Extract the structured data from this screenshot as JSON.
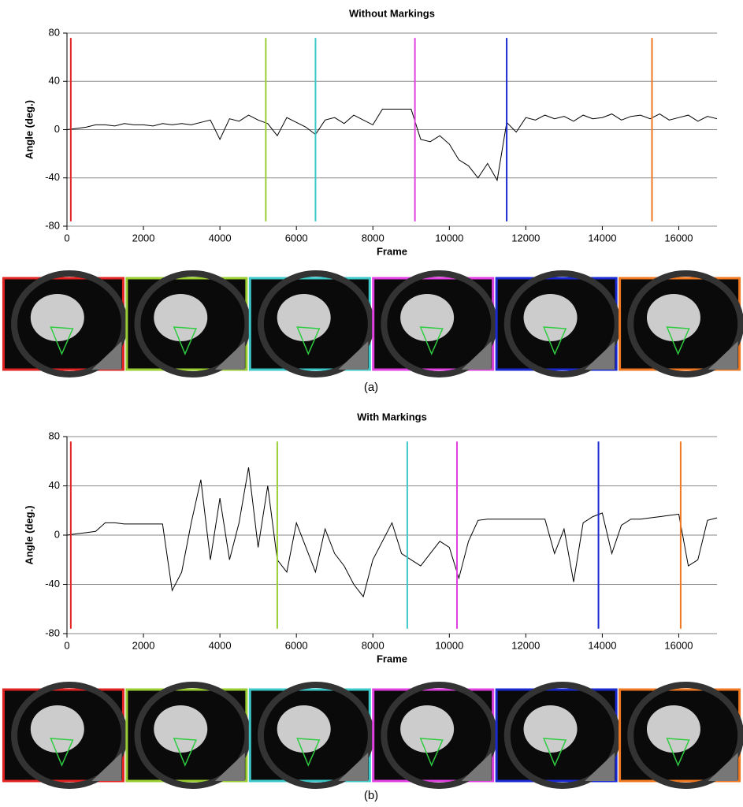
{
  "chart_data": [
    {
      "type": "line",
      "title": "Without Markings",
      "xlabel": "Frame",
      "ylabel": "Angle (deg.)",
      "caption": "(a)",
      "xlim": [
        0,
        17000
      ],
      "ylim": [
        -80,
        80
      ],
      "xticks": [
        0,
        2000,
        4000,
        6000,
        8000,
        10000,
        12000,
        14000,
        16000
      ],
      "yticks": [
        -80,
        -40,
        0,
        40,
        80
      ],
      "grid": true,
      "line_color": "#000000",
      "x": [
        0,
        250,
        500,
        750,
        1000,
        1250,
        1500,
        1750,
        2000,
        2250,
        2500,
        2750,
        3000,
        3250,
        3500,
        3750,
        4000,
        4250,
        4500,
        4750,
        5000,
        5250,
        5500,
        5750,
        6000,
        6250,
        6500,
        6750,
        7000,
        7250,
        7500,
        7750,
        8000,
        8250,
        8500,
        8750,
        9000,
        9250,
        9500,
        9750,
        10000,
        10250,
        10500,
        10750,
        11000,
        11250,
        11500,
        11750,
        12000,
        12250,
        12500,
        12750,
        13000,
        13250,
        13500,
        13750,
        14000,
        14250,
        14500,
        14750,
        15000,
        15250,
        15500,
        15750,
        16000,
        16250,
        16500,
        16750,
        17000
      ],
      "values": [
        0,
        1,
        2,
        4,
        4,
        3,
        5,
        4,
        4,
        3,
        5,
        4,
        5,
        4,
        6,
        8,
        -8,
        9,
        7,
        12,
        8,
        5,
        -5,
        10,
        6,
        2,
        -4,
        8,
        10,
        5,
        12,
        8,
        4,
        17,
        17,
        17,
        17,
        -8,
        -10,
        -5,
        -12,
        -25,
        -30,
        -40,
        -28,
        -42,
        6,
        -2,
        10,
        8,
        12,
        9,
        11,
        7,
        12,
        9,
        10,
        13,
        8,
        11,
        12,
        9,
        13,
        8,
        10,
        12,
        7,
        11,
        9
      ],
      "markers": {
        "x": [
          100,
          5200,
          6500,
          9100,
          11500,
          15300
        ],
        "colors": [
          "#e32222",
          "#9acd32",
          "#3cc8c8",
          "#e040e0",
          "#1a2ad0",
          "#f07820"
        ]
      }
    },
    {
      "type": "line",
      "title": "With Markings",
      "xlabel": "Frame",
      "ylabel": "Angle (deg.)",
      "caption": "(b)",
      "xlim": [
        0,
        17000
      ],
      "ylim": [
        -80,
        80
      ],
      "xticks": [
        0,
        2000,
        4000,
        6000,
        8000,
        10000,
        12000,
        14000,
        16000
      ],
      "yticks": [
        -80,
        -40,
        0,
        40,
        80
      ],
      "grid": true,
      "line_color": "#000000",
      "x": [
        0,
        250,
        500,
        750,
        1000,
        1250,
        1500,
        1750,
        2000,
        2250,
        2500,
        2750,
        3000,
        3250,
        3500,
        3750,
        4000,
        4250,
        4500,
        4750,
        5000,
        5250,
        5500,
        5750,
        6000,
        6250,
        6500,
        6750,
        7000,
        7250,
        7500,
        7750,
        8000,
        8250,
        8500,
        8750,
        9000,
        9250,
        9500,
        9750,
        10000,
        10250,
        10500,
        10750,
        11000,
        11250,
        11500,
        11750,
        12000,
        12250,
        12500,
        12750,
        13000,
        13250,
        13500,
        13750,
        14000,
        14250,
        14500,
        14750,
        15000,
        15250,
        15500,
        15750,
        16000,
        16250,
        16500,
        16750,
        17000
      ],
      "values": [
        0,
        1,
        2,
        3,
        10,
        10,
        9,
        9,
        9,
        9,
        9,
        -45,
        -30,
        10,
        45,
        -20,
        30,
        -20,
        10,
        55,
        -10,
        40,
        -20,
        -30,
        10,
        -10,
        -30,
        5,
        -15,
        -25,
        -40,
        -50,
        -20,
        -5,
        10,
        -15,
        -20,
        -25,
        -15,
        -5,
        -10,
        -35,
        -5,
        12,
        13,
        13,
        13,
        13,
        13,
        13,
        13,
        -15,
        5,
        -38,
        10,
        15,
        18,
        -15,
        8,
        13,
        13,
        14,
        15,
        16,
        17,
        -25,
        -20,
        12,
        14
      ],
      "markers": {
        "x": [
          100,
          5500,
          8900,
          10200,
          13900,
          16050
        ],
        "colors": [
          "#e32222",
          "#9acd32",
          "#3cc8c8",
          "#e040e0",
          "#1a2ad0",
          "#f07820"
        ]
      }
    }
  ]
}
